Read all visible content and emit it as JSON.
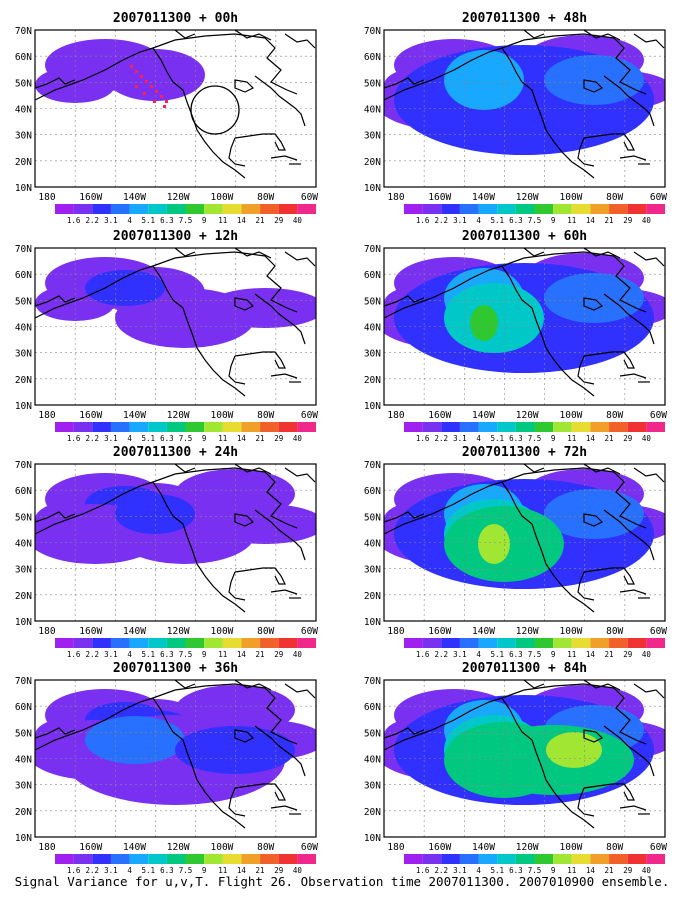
{
  "figure": {
    "caption": "Signal Variance for u,v,T. Flight 26. Observation time 2007011300. 2007010900 ensemble."
  },
  "axes": {
    "lon_labels": [
      "180",
      "160W",
      "140W",
      "120W",
      "100W",
      "80W",
      "60W"
    ],
    "lat_labels": [
      "70N",
      "60N",
      "50N",
      "40N",
      "30N",
      "20N",
      "10N"
    ]
  },
  "colorbar": {
    "levels": [
      "1.6",
      "2.2",
      "3.1",
      "4",
      "5.1",
      "6.3",
      "7.5",
      "9",
      "11",
      "14",
      "21",
      "29",
      "40"
    ],
    "colors": [
      "#a020f0",
      "#7a30f0",
      "#3030ff",
      "#2870ff",
      "#18a8ff",
      "#00c8c8",
      "#00c880",
      "#30c830",
      "#a0e632",
      "#e6dc32",
      "#f0a028",
      "#f06028",
      "#f03232",
      "#f0288c"
    ]
  },
  "panels": [
    {
      "title": "2007011300 + 00h",
      "intensity": 0
    },
    {
      "title": "2007011300 + 48h",
      "intensity": 4
    },
    {
      "title": "2007011300 + 12h",
      "intensity": 1
    },
    {
      "title": "2007011300 + 60h",
      "intensity": 5
    },
    {
      "title": "2007011300 + 24h",
      "intensity": 2
    },
    {
      "title": "2007011300 + 72h",
      "intensity": 6
    },
    {
      "title": "2007011300 + 36h",
      "intensity": 3
    },
    {
      "title": "2007011300 + 84h",
      "intensity": 7
    }
  ]
}
